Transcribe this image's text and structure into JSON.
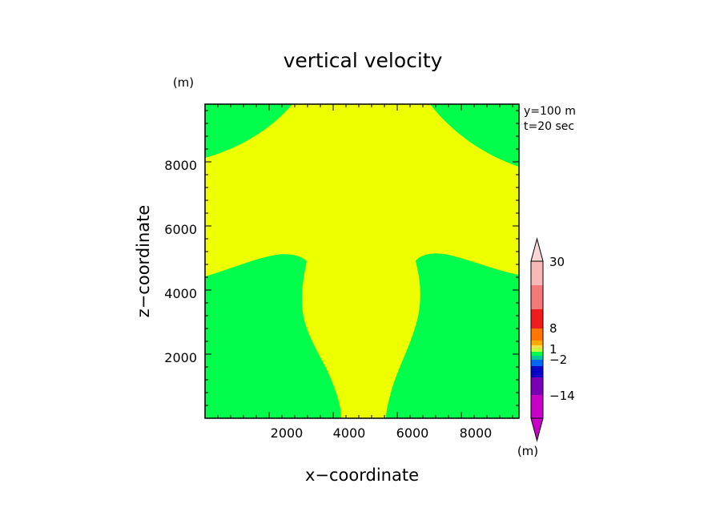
{
  "chart_data": {
    "type": "heatmap",
    "title": "vertical velocity",
    "xlabel": "x−coordinate",
    "ylabel": "z−coordinate",
    "y_unit": "(m)",
    "colorbar_unit": "(m)",
    "annotations": [
      "y=100 m",
      "t=20 sec"
    ],
    "xlim": [
      0,
      9800
    ],
    "ylim": [
      0,
      9800
    ],
    "xticks": [
      2000,
      4000,
      6000,
      8000
    ],
    "yticks": [
      2000,
      4000,
      6000,
      8000
    ],
    "xtick_labels": [
      "2000",
      "4000",
      "6000",
      "8000"
    ],
    "ytick_labels": [
      "2000",
      "4000",
      "6000",
      "8000"
    ],
    "regions": [
      {
        "name": "updraft",
        "color": "#eeff00"
      },
      {
        "name": "background",
        "color": "#00ff4c"
      }
    ],
    "colorbar": {
      "labels": [
        "30",
        "8",
        "1",
        "−2",
        "−14"
      ],
      "colors_top_to_bottom": [
        "#f9b8b8",
        "#f47a7a",
        "#f01c1c",
        "#ff7700",
        "#ffaa00",
        "#ffe14d",
        "#c8ff3c",
        "#00ff4c",
        "#00c8a0",
        "#0064ff",
        "#0000c8",
        "#7a00b4",
        "#c800c8"
      ],
      "upper_arrow_color": "#f9d6d6",
      "lower_arrow_color": "#c800c8"
    }
  }
}
